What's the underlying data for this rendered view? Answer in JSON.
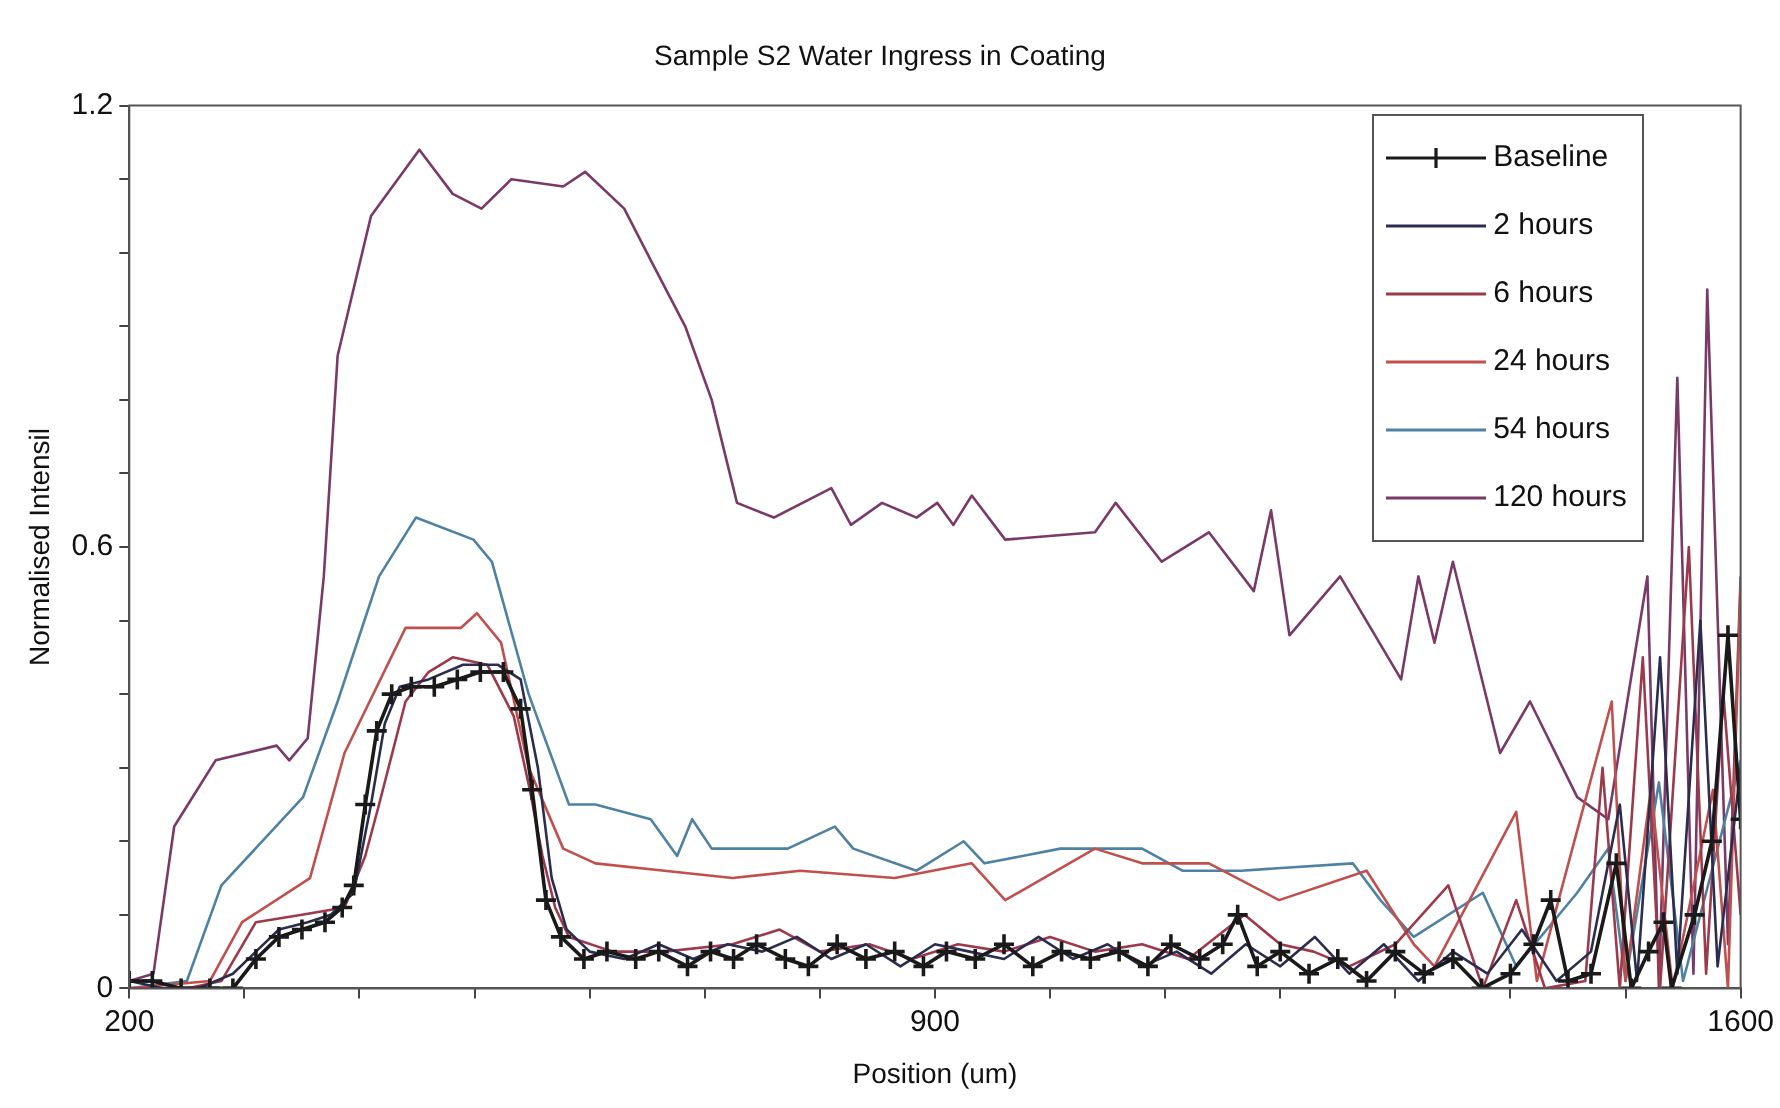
{
  "chart_data": {
    "type": "line",
    "title": "Sample S2 Water Ingress in Coating",
    "xlabel": "Position (um)",
    "ylabel": "Normalised Intensil",
    "xlim": [
      200,
      1600
    ],
    "ylim": [
      0,
      1.2
    ],
    "xticks": [
      200,
      {
        "value": 300,
        "label": null
      },
      {
        "value": 400,
        "label": null
      },
      {
        "value": 500,
        "label": null
      },
      {
        "value": 600,
        "label": null
      },
      {
        "value": 700,
        "label": null
      },
      {
        "value": 800,
        "label": null
      },
      900,
      {
        "value": 1000,
        "label": null
      },
      {
        "value": 1100,
        "label": null
      },
      {
        "value": 1200,
        "label": null
      },
      {
        "value": 1300,
        "label": null
      },
      {
        "value": 1400,
        "label": null
      },
      {
        "value": 1500,
        "label": null
      },
      1600
    ],
    "yticks": [
      0,
      {
        "value": 0.1,
        "label": null
      },
      {
        "value": 0.2,
        "label": null
      },
      {
        "value": 0.3,
        "label": null
      },
      {
        "value": 0.4,
        "label": null
      },
      {
        "value": 0.5,
        "label": null
      },
      0.6,
      {
        "value": 0.7,
        "label": null
      },
      {
        "value": 0.8,
        "label": null
      },
      {
        "value": 0.9,
        "label": null
      },
      {
        "value": 1,
        "label": null
      },
      {
        "value": 1.1,
        "label": null
      },
      1.2
    ],
    "legend": "top right",
    "line_style": "solid",
    "series": [
      {
        "name": "Baseline",
        "color": "#1a1a1a",
        "marker": "cross",
        "x": [
          200,
          220,
          245,
          270,
          290,
          310,
          330,
          350,
          370,
          385,
          395,
          405,
          415,
          428,
          445,
          465,
          485,
          505,
          525,
          540,
          550,
          562,
          575,
          595,
          615,
          640,
          660,
          685,
          705,
          725,
          745,
          770,
          790,
          815,
          840,
          865,
          890,
          910,
          935,
          960,
          985,
          1010,
          1035,
          1060,
          1085,
          1105,
          1130,
          1150,
          1163,
          1180,
          1200,
          1225,
          1250,
          1275,
          1300,
          1325,
          1350,
          1375,
          1400,
          1420,
          1435,
          1450,
          1470,
          1492,
          1505,
          1520,
          1533,
          1540,
          1560,
          1575,
          1589,
          1600
        ],
        "values": [
          0.01,
          0.01,
          0,
          0,
          0,
          0.04,
          0.07,
          0.08,
          0.09,
          0.11,
          0.14,
          0.25,
          0.35,
          0.4,
          0.41,
          0.41,
          0.42,
          0.43,
          0.43,
          0.38,
          0.27,
          0.12,
          0.07,
          0.04,
          0.05,
          0.04,
          0.05,
          0.03,
          0.05,
          0.04,
          0.06,
          0.04,
          0.03,
          0.06,
          0.04,
          0.05,
          0.03,
          0.05,
          0.04,
          0.06,
          0.03,
          0.05,
          0.04,
          0.05,
          0.03,
          0.06,
          0.04,
          0.06,
          0.1,
          0.03,
          0.05,
          0.02,
          0.04,
          0.01,
          0.05,
          0.02,
          0.04,
          0,
          0.02,
          0.06,
          0.12,
          0.01,
          0.02,
          0.17,
          0,
          0.05,
          0.09,
          0,
          0.1,
          0.2,
          0.48,
          0.23
        ]
      },
      {
        "name": "2 hours",
        "color": "#2b2d4f",
        "marker": "none",
        "x": [
          200,
          230,
          260,
          290,
          310,
          330,
          355,
          375,
          395,
          410,
          422,
          435,
          460,
          490,
          520,
          540,
          555,
          567,
          580,
          600,
          630,
          660,
          690,
          720,
          750,
          780,
          810,
          840,
          870,
          900,
          930,
          960,
          990,
          1020,
          1050,
          1080,
          1110,
          1140,
          1170,
          1200,
          1230,
          1260,
          1290,
          1320,
          1350,
          1380,
          1410,
          1440,
          1470,
          1495,
          1510,
          1530,
          1545,
          1565,
          1580,
          1600
        ],
        "values": [
          0.01,
          0,
          0,
          0.02,
          0.05,
          0.08,
          0.09,
          0.1,
          0.13,
          0.25,
          0.36,
          0.41,
          0.42,
          0.44,
          0.44,
          0.42,
          0.3,
          0.15,
          0.08,
          0.05,
          0.04,
          0.06,
          0.04,
          0.06,
          0.05,
          0.07,
          0.04,
          0.06,
          0.03,
          0.06,
          0.05,
          0.04,
          0.07,
          0.04,
          0.06,
          0.03,
          0.05,
          0.02,
          0.06,
          0.03,
          0.07,
          0.02,
          0.06,
          0.01,
          0.05,
          0.02,
          0.08,
          0.01,
          0.05,
          0.25,
          0.01,
          0.45,
          0.02,
          0.5,
          0.03,
          0.3
        ]
      },
      {
        "name": "6 hours",
        "color": "#9c3a4c",
        "marker": "none",
        "x": [
          200,
          250,
          280,
          310,
          350,
          387,
          405,
          417,
          440,
          460,
          481,
          511,
          534,
          548,
          559,
          570,
          582,
          620,
          665,
          724,
          765,
          800,
          843,
          880,
          920,
          960,
          1000,
          1039,
          1080,
          1120,
          1169,
          1200,
          1229,
          1260,
          1300,
          1346,
          1376,
          1405,
          1430,
          1465,
          1480,
          1495,
          1515,
          1530,
          1555,
          1570,
          1585,
          1600
        ],
        "values": [
          0,
          0,
          0.01,
          0.09,
          0.1,
          0.11,
          0.18,
          0.25,
          0.39,
          0.43,
          0.45,
          0.44,
          0.37,
          0.27,
          0.18,
          0.11,
          0.07,
          0.05,
          0.05,
          0.06,
          0.08,
          0.05,
          0.06,
          0.04,
          0.06,
          0.05,
          0.07,
          0.05,
          0.06,
          0.04,
          0.1,
          0.06,
          0.05,
          0.03,
          0.06,
          0.14,
          0,
          0.12,
          0,
          0.01,
          0.3,
          0,
          0.45,
          0,
          0.6,
          0.02,
          0.4,
          0.1
        ]
      },
      {
        "name": "24 hours",
        "color": "#c0504d",
        "marker": "none",
        "x": [
          200,
          270,
          298,
          357,
          387,
          440,
          488,
          502,
          523,
          547,
          577,
          605,
          665,
          724,
          783,
          865,
          932,
          961,
          1039,
          1080,
          1138,
          1199,
          1275,
          1316,
          1334,
          1405,
          1423,
          1488,
          1500,
          1522,
          1541,
          1576,
          1589,
          1600
        ],
        "values": [
          0,
          0.01,
          0.09,
          0.15,
          0.32,
          0.49,
          0.49,
          0.51,
          0.47,
          0.3,
          0.19,
          0.17,
          0.16,
          0.15,
          0.16,
          0.15,
          0.17,
          0.12,
          0.19,
          0.17,
          0.17,
          0.12,
          0.16,
          0.06,
          0.03,
          0.24,
          0.01,
          0.39,
          0.01,
          0.27,
          0,
          0.27,
          0,
          0.55
        ]
      },
      {
        "name": "54 hours",
        "color": "#4f81a3",
        "marker": "none",
        "x": [
          200,
          250,
          280,
          351,
          381,
          417,
          449,
          499,
          515,
          547,
          582,
          605,
          653,
          676,
          689,
          706,
          772,
          813,
          829,
          884,
          925,
          943,
          1009,
          1080,
          1115,
          1166,
          1263,
          1287,
          1316,
          1376,
          1405,
          1458,
          1485,
          1500,
          1529,
          1550,
          1600
        ],
        "values": [
          0,
          0.01,
          0.14,
          0.26,
          0.39,
          0.56,
          0.64,
          0.61,
          0.58,
          0.4,
          0.25,
          0.25,
          0.23,
          0.18,
          0.23,
          0.19,
          0.19,
          0.22,
          0.19,
          0.16,
          0.2,
          0.17,
          0.19,
          0.19,
          0.16,
          0.16,
          0.17,
          0.12,
          0.07,
          0.13,
          0.03,
          0.13,
          0.19,
          0.01,
          0.28,
          0.01,
          0.31
        ]
      },
      {
        "name": "120 hours",
        "color": "#7a3a68",
        "marker": "none",
        "x": [
          200,
          221,
          239,
          275,
          328,
          339,
          355,
          369,
          381,
          410,
          452,
          481,
          506,
          532,
          577,
          596,
          630,
          653,
          683,
          706,
          728,
          760,
          810,
          827,
          854,
          884,
          902,
          916,
          932,
          961,
          1039,
          1057,
          1097,
          1138,
          1177,
          1192,
          1208,
          1252,
          1305,
          1320,
          1334,
          1350,
          1391,
          1417,
          1458,
          1485,
          1519,
          1529,
          1545,
          1559,
          1571,
          1589,
          1600
        ],
        "values": [
          0.01,
          0.02,
          0.22,
          0.31,
          0.33,
          0.31,
          0.34,
          0.56,
          0.86,
          1.05,
          1.14,
          1.08,
          1.06,
          1.1,
          1.09,
          1.11,
          1.06,
          0.99,
          0.9,
          0.8,
          0.66,
          0.64,
          0.68,
          0.63,
          0.66,
          0.64,
          0.66,
          0.63,
          0.67,
          0.61,
          0.62,
          0.66,
          0.58,
          0.62,
          0.54,
          0.65,
          0.48,
          0.56,
          0.42,
          0.56,
          0.47,
          0.58,
          0.32,
          0.39,
          0.26,
          0.23,
          0.56,
          0,
          0.83,
          0.02,
          0.95,
          0.06,
          0.56
        ]
      }
    ]
  }
}
